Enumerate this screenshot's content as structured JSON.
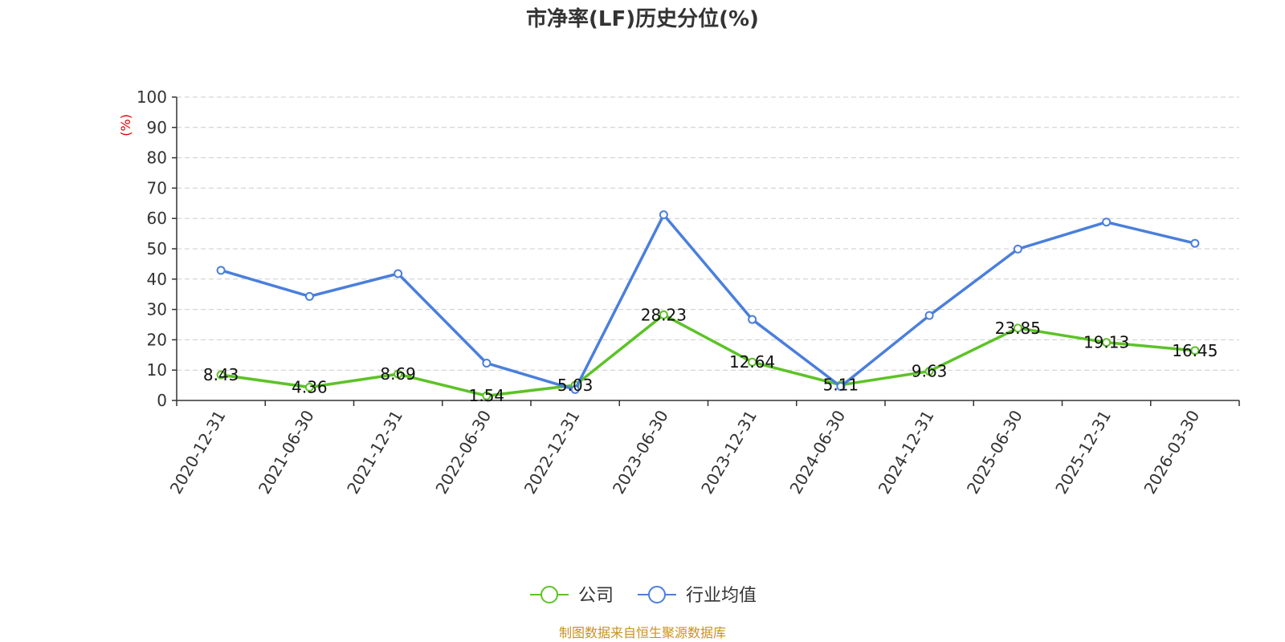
{
  "chart_data": {
    "type": "line",
    "title": "市净率(LF)历史分位(%)",
    "ylabel": "(%)",
    "xlabel": "",
    "ylim": [
      0,
      100
    ],
    "yticks": [
      0,
      10,
      20,
      30,
      40,
      50,
      60,
      70,
      80,
      90,
      100
    ],
    "grid": true,
    "legend_position": "bottom",
    "categories": [
      "2020-12-31",
      "2021-06-30",
      "2021-12-31",
      "2022-06-30",
      "2022-12-31",
      "2023-06-30",
      "2023-12-31",
      "2024-06-30",
      "2024-12-31",
      "2025-06-30",
      "2025-12-31",
      "2026-03-30"
    ],
    "series": [
      {
        "name": "公司",
        "color": "#5cc326",
        "values": [
          8.43,
          4.36,
          8.69,
          1.54,
          5.03,
          28.23,
          12.64,
          5.11,
          9.63,
          23.85,
          19.13,
          16.45
        ],
        "labels": [
          "8.43",
          "4.36",
          "8.69",
          "1.54",
          "5.03",
          "28.23",
          "12.64",
          "5.11",
          "9.63",
          "23.85",
          "19.13",
          "16.45"
        ]
      },
      {
        "name": "行业均值",
        "color": "#4a7fdc",
        "values": [
          42.9,
          34.3,
          41.8,
          12.3,
          3.6,
          61.2,
          26.7,
          4.6,
          28.0,
          49.9,
          58.8,
          51.8
        ]
      }
    ]
  },
  "ylabel_color": "#e00000",
  "source": {
    "text": "制图数据来自恒生聚源数据库",
    "color": "#c8921e"
  }
}
